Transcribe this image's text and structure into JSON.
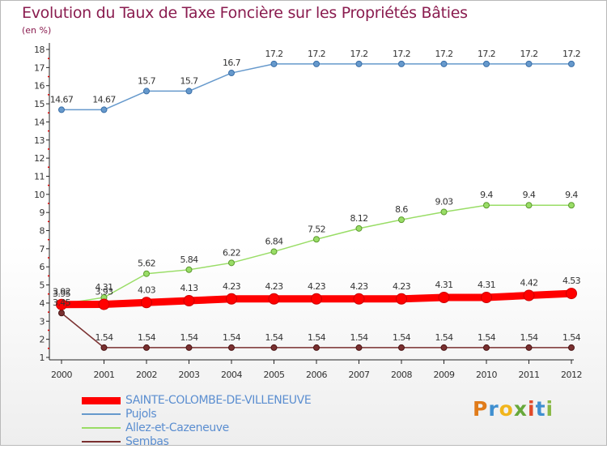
{
  "page": {
    "title": "Evolution du Taux de Taxe Foncière sur les Propriétés Bâties",
    "subtitle": "(en %)"
  },
  "brand": {
    "letters": [
      "P",
      "r",
      "o",
      "x",
      "i",
      "t",
      "i"
    ],
    "colors": [
      "#e07b1a",
      "#3f8fd0",
      "#f1b51c",
      "#67a83a",
      "#e04a2a",
      "#3f8fd0",
      "#89b946"
    ]
  },
  "chart_data": {
    "type": "line",
    "x": [
      "2000",
      "2001",
      "2002",
      "2003",
      "2004",
      "2005",
      "2006",
      "2007",
      "2008",
      "2009",
      "2010",
      "2011",
      "2012"
    ],
    "ylim": [
      1,
      18
    ],
    "yticks": [
      "1",
      "2",
      "3",
      "4",
      "5",
      "6",
      "7",
      "8",
      "9",
      "10",
      "11",
      "12",
      "13",
      "14",
      "15",
      "16",
      "17",
      "18"
    ],
    "grid": false,
    "legend_position": "bottom-left",
    "series": [
      {
        "name": "SAINTE-COLOMBE-DE-VILLENEUVE",
        "color": "#ff0000",
        "values": [
          3.92,
          3.93,
          4.03,
          4.13,
          4.23,
          4.23,
          4.23,
          4.23,
          4.23,
          4.31,
          4.31,
          4.42,
          4.53
        ],
        "labels": [
          "3.92",
          "3.93",
          "4.03",
          "4.13",
          "4.23",
          "4.23",
          "4.23",
          "4.23",
          "4.23",
          "4.31",
          "4.31",
          "4.42",
          "4.53"
        ]
      },
      {
        "name": "Pujols",
        "color": "#6699cc",
        "values": [
          14.67,
          14.67,
          15.7,
          15.7,
          16.7,
          17.2,
          17.2,
          17.2,
          17.2,
          17.2,
          17.2,
          17.2,
          17.2
        ],
        "labels": [
          "14.67",
          "14.67",
          "15.7",
          "15.7",
          "16.7",
          "17.2",
          "17.2",
          "17.2",
          "17.2",
          "17.2",
          "17.2",
          "17.2",
          "17.2"
        ]
      },
      {
        "name": "Allez-et-Cazeneuve",
        "color": "#99dd66",
        "values": [
          3.95,
          4.31,
          5.62,
          5.84,
          6.22,
          6.84,
          7.52,
          8.12,
          8.6,
          9.03,
          9.4,
          9.4,
          9.4
        ],
        "labels": [
          "3.95",
          "4.31",
          "5.62",
          "5.84",
          "6.22",
          "6.84",
          "7.52",
          "8.12",
          "8.6",
          "9.03",
          "9.4",
          "9.4",
          "9.4"
        ]
      },
      {
        "name": "Sembas",
        "color": "#7a3030",
        "values": [
          3.45,
          1.54,
          1.54,
          1.54,
          1.54,
          1.54,
          1.54,
          1.54,
          1.54,
          1.54,
          1.54,
          1.54,
          1.54
        ],
        "labels": [
          "3.45",
          "1.54",
          "1.54",
          "1.54",
          "1.54",
          "1.54",
          "1.54",
          "1.54",
          "1.54",
          "1.54",
          "1.54",
          "1.54",
          "1.54"
        ]
      }
    ]
  }
}
